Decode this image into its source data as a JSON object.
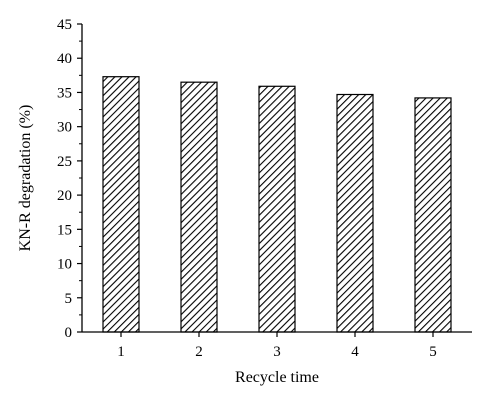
{
  "chart_data": {
    "type": "bar",
    "categories": [
      "1",
      "2",
      "3",
      "4",
      "5"
    ],
    "values": [
      37.3,
      36.5,
      35.9,
      34.7,
      34.2
    ],
    "xlabel": "Recycle time",
    "ylabel": "KN-R degradation (%)",
    "ylim": [
      0,
      45
    ],
    "yticks": [
      0,
      5,
      10,
      15,
      20,
      25,
      30,
      35,
      40,
      45
    ],
    "grid": false,
    "bar_fill": "diagonal-hatch",
    "colors": {
      "bar_stroke": "#000000",
      "hatch": "#000000",
      "background": "#ffffff"
    }
  }
}
